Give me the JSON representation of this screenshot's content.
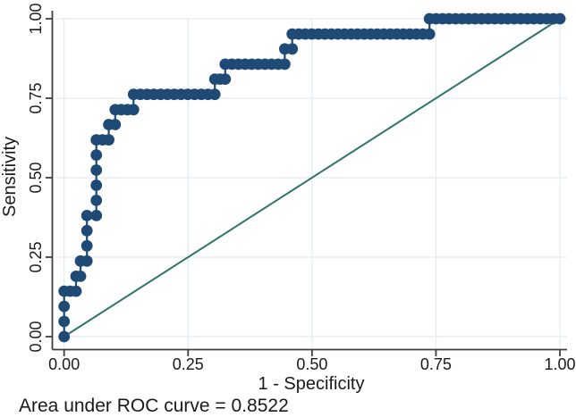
{
  "colors": {
    "curve": "#1f4a75",
    "diagonal": "#2f7468",
    "grid": "#e4ebf3",
    "axis": "#3f3f3f",
    "text": "#1a1a1a",
    "background": "#ffffff"
  },
  "chart_data": {
    "type": "line",
    "subtype": "roc-curve",
    "title": "",
    "xlabel": "1 - Specificity",
    "ylabel": "Sensitivity",
    "xlim": [
      0,
      1
    ],
    "ylim": [
      0,
      1
    ],
    "grid": true,
    "legend": "none",
    "xticks": {
      "values": [
        0,
        0.25,
        0.5,
        0.75,
        1
      ],
      "labels": [
        "0.00",
        "0.25",
        "0.50",
        "0.75",
        "1.00"
      ]
    },
    "yticks": {
      "values": [
        0,
        0.25,
        0.5,
        0.75,
        1
      ],
      "labels": [
        "0.00",
        "0.25",
        "0.50",
        "0.75",
        "1.00"
      ]
    },
    "series": [
      {
        "name": "ROC curve",
        "style": "step-line-with-markers",
        "color": "#1f4a75",
        "marker": "circle",
        "marker_radius": 6.4,
        "marker_spacing": {
          "x": 0.0133,
          "y": 0.0476
        },
        "points": [
          [
            0.0,
            0.0
          ],
          [
            0.0,
            0.143
          ],
          [
            0.024,
            0.143
          ],
          [
            0.024,
            0.19
          ],
          [
            0.033,
            0.19
          ],
          [
            0.033,
            0.238
          ],
          [
            0.046,
            0.238
          ],
          [
            0.046,
            0.381
          ],
          [
            0.065,
            0.381
          ],
          [
            0.065,
            0.619
          ],
          [
            0.09,
            0.619
          ],
          [
            0.09,
            0.667
          ],
          [
            0.103,
            0.667
          ],
          [
            0.103,
            0.714
          ],
          [
            0.14,
            0.714
          ],
          [
            0.14,
            0.762
          ],
          [
            0.304,
            0.762
          ],
          [
            0.304,
            0.81
          ],
          [
            0.325,
            0.81
          ],
          [
            0.325,
            0.857
          ],
          [
            0.445,
            0.857
          ],
          [
            0.445,
            0.905
          ],
          [
            0.46,
            0.905
          ],
          [
            0.46,
            0.952
          ],
          [
            0.737,
            0.952
          ],
          [
            0.737,
            1.0
          ],
          [
            1.0,
            1.0
          ]
        ]
      },
      {
        "name": "chance-diagonal",
        "style": "line",
        "color": "#2f7468",
        "points": [
          [
            0,
            0
          ],
          [
            1,
            1
          ]
        ]
      }
    ],
    "annotation": "Area under ROC curve = 0.8522",
    "auc_value": "0.8522"
  }
}
